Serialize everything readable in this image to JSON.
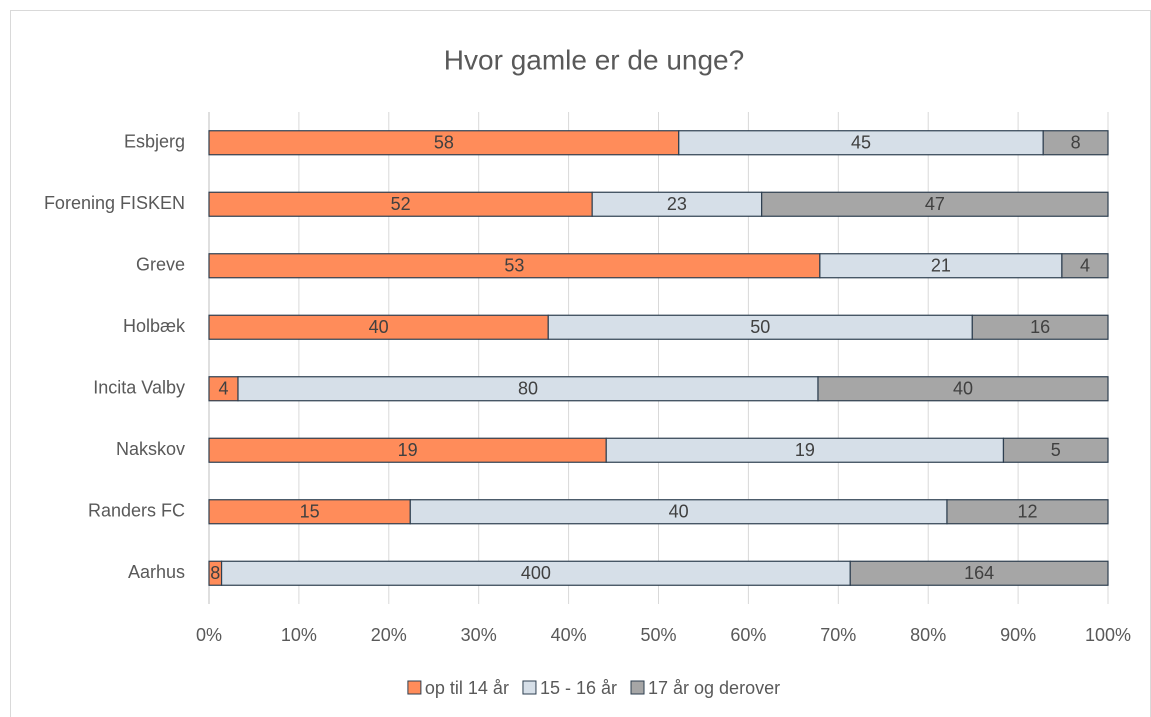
{
  "chart_data": {
    "type": "bar",
    "orientation": "horizontal",
    "stacked": "percent",
    "title": "Hvor gamle er de unge?",
    "categories": [
      "Esbjerg",
      "Forening FISKEN",
      "Greve",
      "Holbæk",
      "Incita Valby",
      "Nakskov",
      "Randers FC",
      "Aarhus"
    ],
    "series": [
      {
        "name": "op til 14 år",
        "color": "#ff8c5a",
        "values": [
          58,
          52,
          53,
          40,
          4,
          19,
          15,
          8
        ]
      },
      {
        "name": "15 - 16 år",
        "color": "#d6dfe8",
        "values": [
          45,
          23,
          21,
          50,
          80,
          19,
          40,
          400
        ]
      },
      {
        "name": "17 år og derover",
        "color": "#a6a6a6",
        "values": [
          8,
          47,
          4,
          16,
          40,
          5,
          12,
          164
        ]
      }
    ],
    "xlim": [
      0,
      100
    ],
    "xticks": [
      {
        "value": 0,
        "label": "0%"
      },
      {
        "value": 10,
        "label": "10%"
      },
      {
        "value": 20,
        "label": "20%"
      },
      {
        "value": 30,
        "label": "30%"
      },
      {
        "value": 40,
        "label": "40%"
      },
      {
        "value": 50,
        "label": "50%"
      },
      {
        "value": 60,
        "label": "60%"
      },
      {
        "value": 70,
        "label": "70%"
      },
      {
        "value": 80,
        "label": "80%"
      },
      {
        "value": 90,
        "label": "90%"
      },
      {
        "value": 100,
        "label": "100%"
      }
    ],
    "grid": true,
    "legend": "bottom"
  }
}
